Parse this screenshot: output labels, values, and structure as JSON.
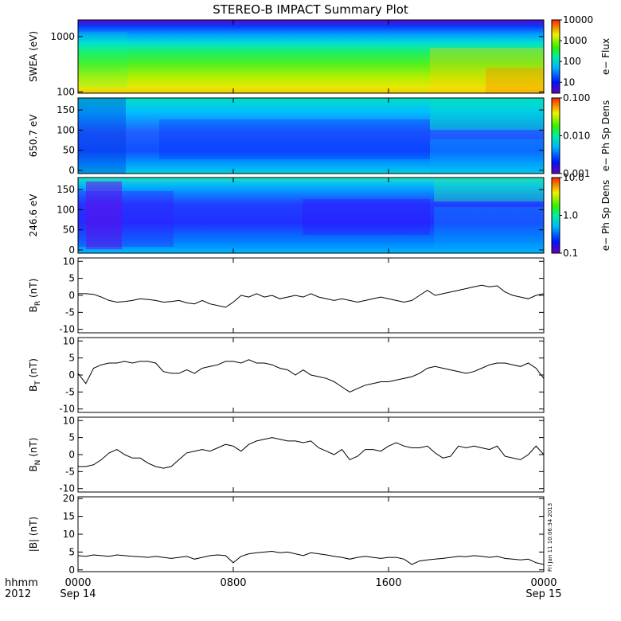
{
  "title": "STEREO-B IMPACT Summary Plot",
  "footer": {
    "left_top": "hhmm",
    "left_bottom": "2012",
    "side_stamp": "Fri Jan 11 10:06:34 2013"
  },
  "chart_data": [
    {
      "type": "heatmap",
      "ylabel": "SWEA (eV)",
      "yscale": "log",
      "ylim": [
        95,
        2000
      ],
      "yticks": [
        "100",
        "1000"
      ],
      "colorbar_label": "e− Flux",
      "colorbar_scale": "log",
      "colorbar_range": [
        3,
        10000
      ],
      "colorbar_ticks": [
        "10",
        "100",
        "1000",
        "10000"
      ]
    },
    {
      "type": "heatmap",
      "ylabel": "650.7 eV",
      "ylim": [
        -8,
        180
      ],
      "yticks": [
        "0",
        "50",
        "100",
        "150"
      ],
      "colorbar_label": "e− Ph Sp Dens",
      "colorbar_scale": "log",
      "colorbar_range": [
        0.001,
        0.1
      ],
      "colorbar_ticks": [
        "0.001",
        "0.010",
        "0.100"
      ]
    },
    {
      "type": "heatmap",
      "ylabel": "246.6 eV",
      "ylim": [
        -8,
        180
      ],
      "yticks": [
        "0",
        "50",
        "100",
        "150"
      ],
      "colorbar_label": "e− Ph Sp Dens",
      "colorbar_scale": "log",
      "colorbar_range": [
        0.1,
        10
      ],
      "colorbar_ticks": [
        "0.1",
        "1.0",
        "10.0"
      ]
    },
    {
      "type": "line",
      "ylabel": "B_R (nT)",
      "ylim": [
        -11,
        11
      ],
      "yticks": [
        "-10",
        "-5",
        "0",
        "5",
        "10"
      ],
      "x": [
        0,
        0.4,
        0.8,
        1.2,
        1.6,
        2,
        2.4,
        2.8,
        3.2,
        3.6,
        4,
        4.4,
        4.8,
        5.2,
        5.6,
        6,
        6.4,
        6.8,
        7.2,
        7.6,
        8,
        8.4,
        8.8,
        9.2,
        9.6,
        10,
        10.4,
        10.8,
        11.2,
        11.6,
        12,
        12.4,
        12.8,
        13.2,
        13.6,
        14,
        14.4,
        14.8,
        15.2,
        15.6,
        16,
        16.4,
        16.8,
        17.2,
        17.6,
        18,
        18.4,
        18.8,
        19.2,
        19.6,
        20,
        20.4,
        20.8,
        21.2,
        21.6,
        22,
        22.4,
        22.8,
        23.2,
        23.6,
        24
      ],
      "values": [
        0.5,
        0.5,
        0.3,
        -0.5,
        -1.5,
        -2,
        -1.8,
        -1.5,
        -1,
        -1.2,
        -1.5,
        -2,
        -1.8,
        -1.5,
        -2.2,
        -2.5,
        -1.5,
        -2.5,
        -3,
        -3.5,
        -2,
        0,
        -0.5,
        0.5,
        -0.5,
        0,
        -1,
        -0.5,
        0,
        -0.5,
        0.5,
        -0.5,
        -1,
        -1.5,
        -1,
        -1.5,
        -2,
        -1.5,
        -1,
        -0.5,
        -1,
        -1.5,
        -2,
        -1.5,
        0,
        1.5,
        0,
        0.5,
        1,
        1.5,
        2,
        2.5,
        3,
        2.5,
        2.8,
        1,
        0,
        -0.5,
        -1,
        0,
        0.5
      ]
    },
    {
      "type": "line",
      "ylabel": "B_T (nT)",
      "ylim": [
        -11,
        11
      ],
      "yticks": [
        "-10",
        "-5",
        "0",
        "5",
        "10"
      ],
      "x": [
        0,
        0.4,
        0.8,
        1.2,
        1.6,
        2,
        2.4,
        2.8,
        3.2,
        3.6,
        4,
        4.4,
        4.8,
        5.2,
        5.6,
        6,
        6.4,
        6.8,
        7.2,
        7.6,
        8,
        8.4,
        8.8,
        9.2,
        9.6,
        10,
        10.4,
        10.8,
        11.2,
        11.6,
        12,
        12.4,
        12.8,
        13.2,
        13.6,
        14,
        14.4,
        14.8,
        15.2,
        15.6,
        16,
        16.4,
        16.8,
        17.2,
        17.6,
        18,
        18.4,
        18.8,
        19.2,
        19.6,
        20,
        20.4,
        20.8,
        21.2,
        21.6,
        22,
        22.4,
        22.8,
        23.2,
        23.6,
        24
      ],
      "values": [
        0.5,
        -2.5,
        2,
        3,
        3.5,
        3.5,
        4,
        3.5,
        4,
        4,
        3.5,
        1,
        0.5,
        0.5,
        1.5,
        0.5,
        2,
        2.5,
        3,
        4,
        4,
        3.5,
        4.5,
        3.5,
        3.5,
        3,
        2,
        1.5,
        0,
        1.5,
        0,
        -0.5,
        -1,
        -2,
        -3.5,
        -5,
        -4,
        -3,
        -2.5,
        -2,
        -2,
        -1.5,
        -1,
        -0.5,
        0.5,
        2,
        2.5,
        2,
        1.5,
        1,
        0.5,
        1,
        2,
        3,
        3.5,
        3.5,
        3,
        2.5,
        3.5,
        2,
        -1
      ]
    },
    {
      "type": "line",
      "ylabel": "B_N (nT)",
      "ylim": [
        -11,
        11
      ],
      "yticks": [
        "-10",
        "-5",
        "0",
        "5",
        "10"
      ],
      "x": [
        0,
        0.4,
        0.8,
        1.2,
        1.6,
        2,
        2.4,
        2.8,
        3.2,
        3.6,
        4,
        4.4,
        4.8,
        5.2,
        5.6,
        6,
        6.4,
        6.8,
        7.2,
        7.6,
        8,
        8.4,
        8.8,
        9.2,
        9.6,
        10,
        10.4,
        10.8,
        11.2,
        11.6,
        12,
        12.4,
        12.8,
        13.2,
        13.6,
        14,
        14.4,
        14.8,
        15.2,
        15.6,
        16,
        16.4,
        16.8,
        17.2,
        17.6,
        18,
        18.4,
        18.8,
        19.2,
        19.6,
        20,
        20.4,
        20.8,
        21.2,
        21.6,
        22,
        22.4,
        22.8,
        23.2,
        23.6,
        24
      ],
      "values": [
        -3.5,
        -3.5,
        -3,
        -1.5,
        0.5,
        1.5,
        0,
        -1,
        -1,
        -2.5,
        -3.5,
        -4,
        -3.5,
        -1.5,
        0.5,
        1,
        1.5,
        1,
        2,
        3,
        2.5,
        1,
        3,
        4,
        4.5,
        5,
        4.5,
        4,
        4,
        3.5,
        4,
        2,
        1,
        0,
        1.5,
        -1.5,
        -0.5,
        1.5,
        1.5,
        1,
        2.5,
        3.5,
        2.5,
        2,
        2,
        2.5,
        0.5,
        -1,
        -0.5,
        2.5,
        2,
        2.5,
        2,
        1.5,
        2.5,
        -0.5,
        -1,
        -1.5,
        0,
        2.5,
        0
      ]
    },
    {
      "type": "line",
      "ylabel": "|B| (nT)",
      "ylim": [
        -0.5,
        20.5
      ],
      "yticks": [
        "0",
        "5",
        "10",
        "15",
        "20"
      ],
      "x": [
        0,
        0.4,
        0.8,
        1.2,
        1.6,
        2,
        2.4,
        2.8,
        3.2,
        3.6,
        4,
        4.4,
        4.8,
        5.2,
        5.6,
        6,
        6.4,
        6.8,
        7.2,
        7.6,
        8,
        8.4,
        8.8,
        9.2,
        9.6,
        10,
        10.4,
        10.8,
        11.2,
        11.6,
        12,
        12.4,
        12.8,
        13.2,
        13.6,
        14,
        14.4,
        14.8,
        15.2,
        15.6,
        16,
        16.4,
        16.8,
        17.2,
        17.6,
        18,
        18.4,
        18.8,
        19.2,
        19.6,
        20,
        20.4,
        20.8,
        21.2,
        21.6,
        22,
        22.4,
        22.8,
        23.2,
        23.6,
        24
      ],
      "values": [
        4,
        3.8,
        4.2,
        4,
        3.8,
        4.2,
        4,
        3.8,
        3.7,
        3.5,
        3.8,
        3.5,
        3.2,
        3.5,
        3.8,
        3,
        3.5,
        4,
        4.2,
        4,
        2,
        3.8,
        4.5,
        4.8,
        5,
        5.2,
        4.8,
        5,
        4.5,
        4,
        4.8,
        4.5,
        4.2,
        3.8,
        3.5,
        3,
        3.5,
        3.8,
        3.5,
        3.2,
        3.5,
        3.5,
        3,
        1.5,
        2.5,
        2.8,
        3,
        3.2,
        3.5,
        3.8,
        3.7,
        4,
        3.8,
        3.5,
        3.8,
        3.2,
        3,
        2.8,
        3,
        2,
        1.5
      ]
    }
  ],
  "x_axis": {
    "range": [
      0,
      24
    ],
    "ticks": [
      {
        "x": 0,
        "time": "0000",
        "date": "Sep 14"
      },
      {
        "x": 8,
        "time": "0800",
        "date": ""
      },
      {
        "x": 16,
        "time": "1600",
        "date": ""
      },
      {
        "x": 24,
        "time": "0000",
        "date": "Sep 15"
      }
    ]
  }
}
